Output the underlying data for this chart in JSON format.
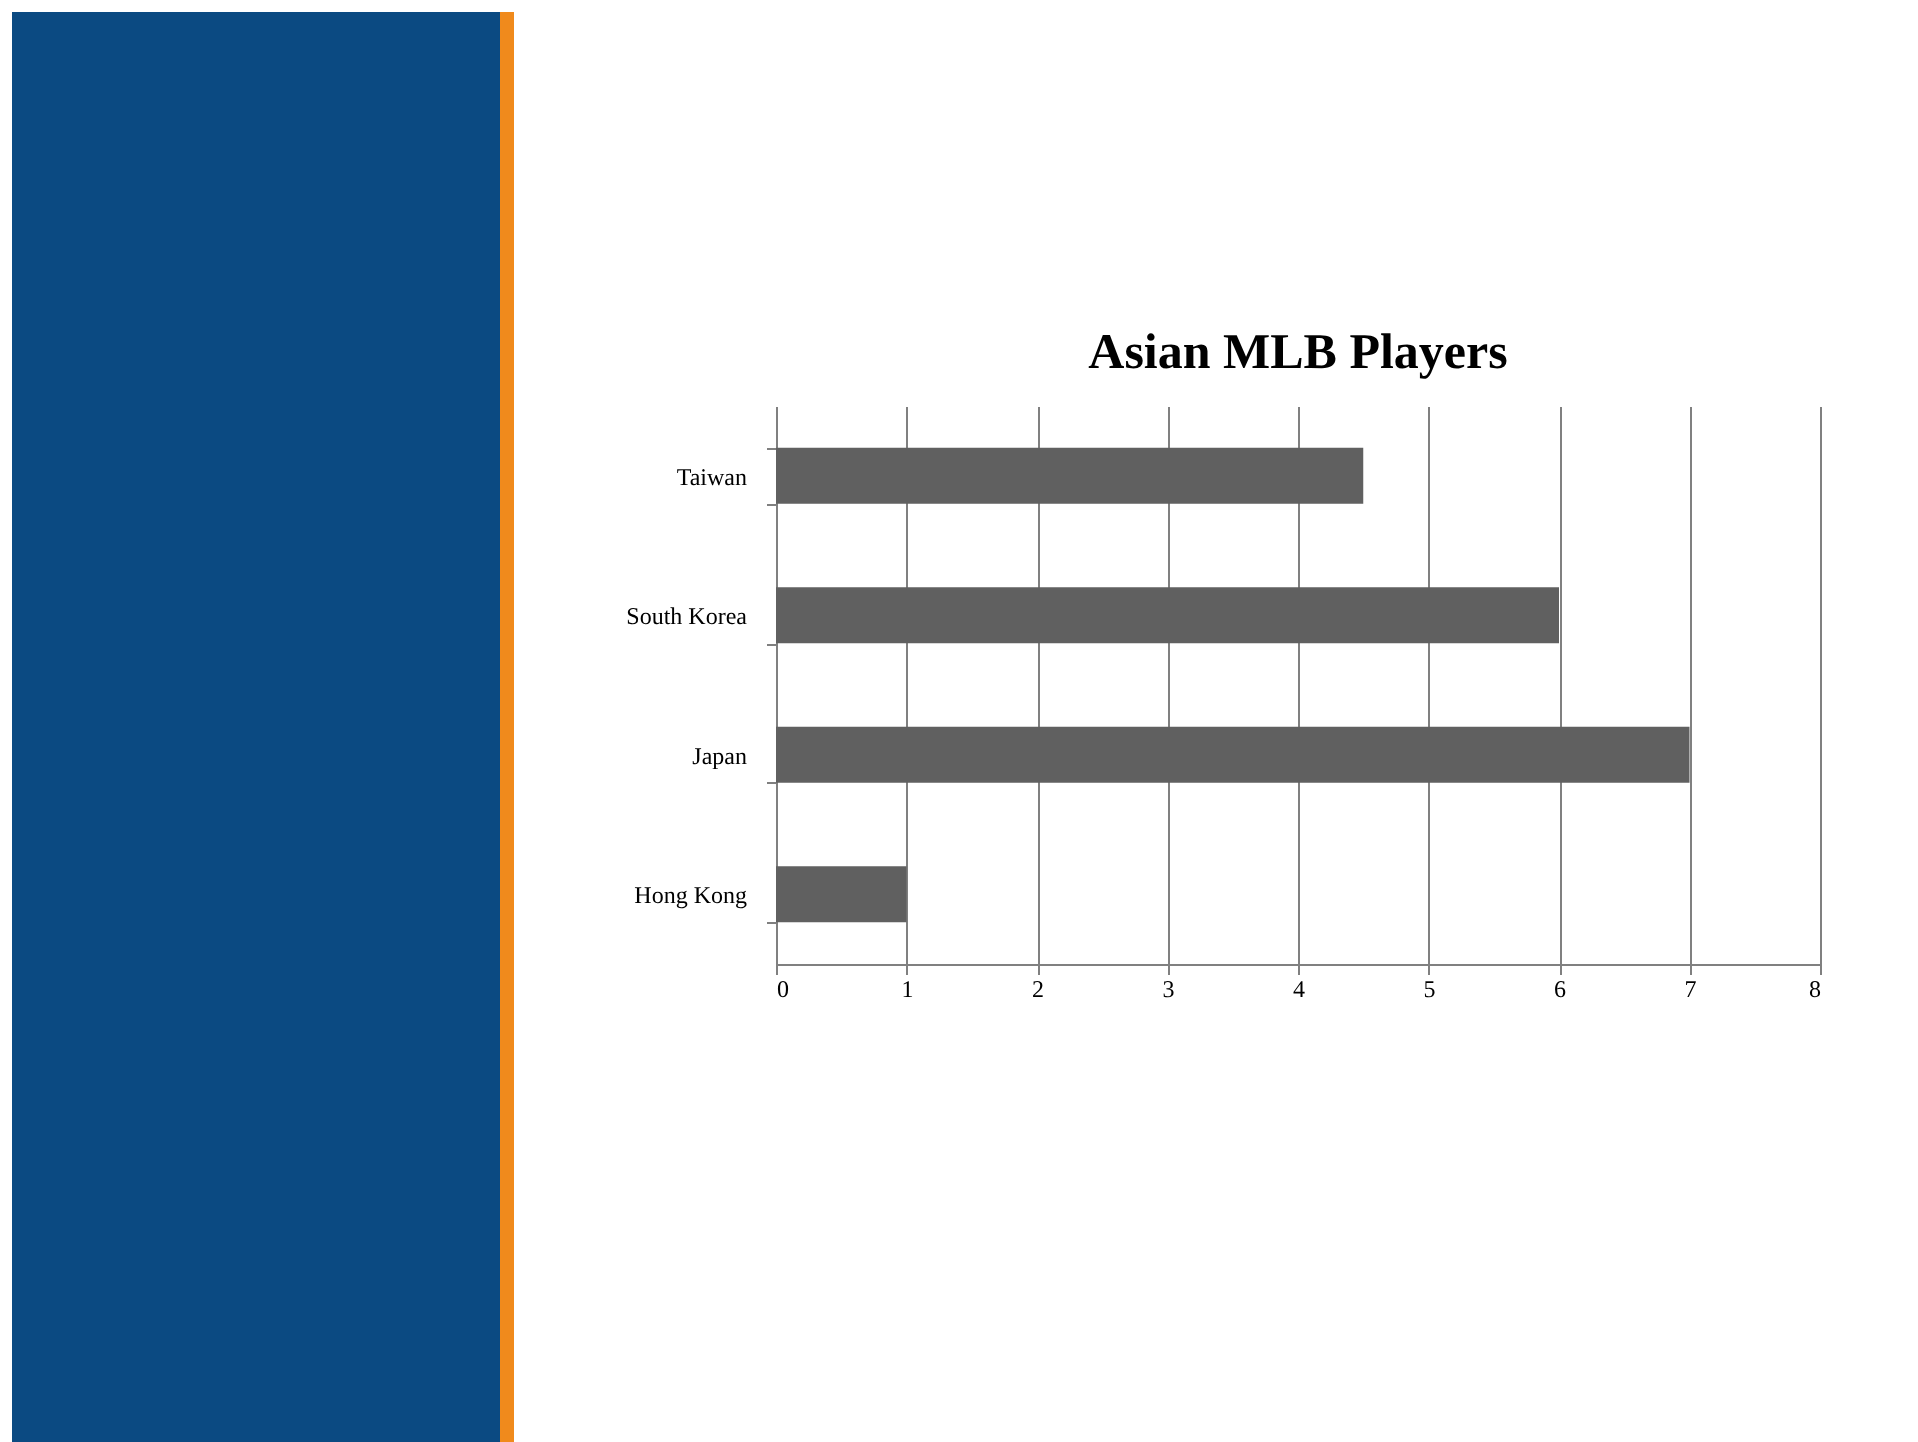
{
  "chart_data": {
    "type": "bar",
    "title": "Asian MLB Players",
    "orientation": "horizontal",
    "categories": [
      "Taiwan",
      "South Korea",
      "Japan",
      "Hong Kong"
    ],
    "values": [
      4.5,
      6,
      7,
      1
    ],
    "color": "#606060",
    "xlim": [
      0,
      8
    ],
    "xticks": [
      0,
      1,
      2,
      3,
      4,
      5,
      6,
      7,
      8
    ],
    "grid": "x"
  }
}
